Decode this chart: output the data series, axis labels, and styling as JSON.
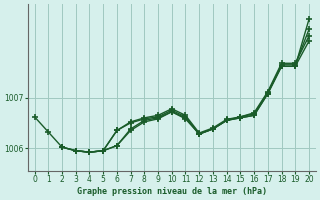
{
  "xlabel": "Graphe pression niveau de la mer (hPa)",
  "background_color": "#d6f0ec",
  "grid_color": "#a0c8c0",
  "line_color": "#1a5c2a",
  "xlim": [
    -0.5,
    20.5
  ],
  "ylim": [
    1005.55,
    1008.85
  ],
  "yticks": [
    1006,
    1007
  ],
  "xticks": [
    0,
    1,
    2,
    3,
    4,
    5,
    6,
    7,
    8,
    9,
    10,
    11,
    12,
    13,
    14,
    15,
    16,
    17,
    18,
    19,
    20
  ],
  "lines": [
    {
      "x": [
        0,
        1,
        2,
        3,
        4,
        5,
        6,
        7,
        8,
        9,
        10,
        11,
        12,
        13,
        14,
        15,
        16,
        17,
        18,
        19,
        20
      ],
      "y": [
        1006.62,
        1006.32,
        1006.02,
        1005.95,
        1005.92,
        1005.95,
        1006.05,
        1006.35,
        1006.52,
        1006.58,
        1006.72,
        1006.58,
        1006.28,
        1006.38,
        1006.55,
        1006.6,
        1006.65,
        1007.08,
        1007.62,
        1007.62,
        1008.55
      ]
    },
    {
      "x": [
        2,
        3,
        4,
        5,
        6,
        7,
        8,
        9,
        10,
        11,
        12,
        13,
        14,
        15,
        16,
        17,
        18,
        19,
        20
      ],
      "y": [
        1006.02,
        1005.95,
        1005.92,
        1005.95,
        1006.35,
        1006.5,
        1006.58,
        1006.62,
        1006.75,
        1006.62,
        1006.28,
        1006.38,
        1006.55,
        1006.62,
        1006.68,
        1007.1,
        1007.65,
        1007.65,
        1008.35
      ]
    },
    {
      "x": [
        2,
        3,
        4,
        5,
        6,
        7,
        8,
        9,
        10,
        11,
        12,
        13,
        14,
        15,
        16,
        17,
        18,
        19,
        20
      ],
      "y": [
        1006.02,
        1005.95,
        1005.92,
        1005.95,
        1006.35,
        1006.52,
        1006.6,
        1006.65,
        1006.78,
        1006.65,
        1006.3,
        1006.4,
        1006.57,
        1006.62,
        1006.7,
        1007.12,
        1007.68,
        1007.68,
        1008.22
      ]
    },
    {
      "x": [
        3,
        4,
        5,
        6,
        7,
        8,
        9,
        10,
        11,
        12,
        13,
        14,
        15,
        16,
        17,
        18,
        19,
        20
      ],
      "y": [
        1005.95,
        1005.92,
        1005.95,
        1006.05,
        1006.38,
        1006.55,
        1006.6,
        1006.72,
        1006.6,
        1006.28,
        1006.38,
        1006.55,
        1006.6,
        1006.65,
        1007.08,
        1007.62,
        1007.62,
        1008.12
      ]
    }
  ],
  "marker": "+",
  "markersize": 4,
  "linewidth": 1.0
}
